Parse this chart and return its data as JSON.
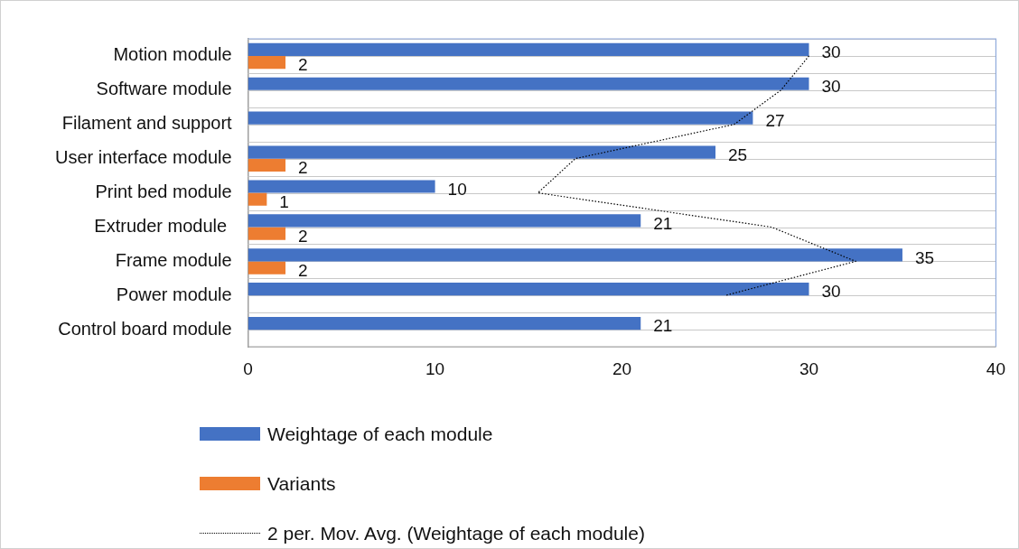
{
  "chart_data": {
    "type": "bar",
    "orientation": "horizontal",
    "categories": [
      "Motion module",
      "Software module",
      "Filament and support",
      "User interface module",
      "Print bed module",
      "Extruder module ",
      "Frame module",
      "Power module",
      "Control board module"
    ],
    "series": [
      {
        "name": "Weightage of each module",
        "color": "#4472c4",
        "values": [
          30,
          30,
          27,
          25,
          10,
          21,
          35,
          30,
          21
        ],
        "value_labels": [
          "30",
          "30",
          "27",
          "25",
          "10",
          "21",
          "35",
          "30",
          "21"
        ]
      },
      {
        "name": "Variants",
        "color": "#ed7d31",
        "values": [
          2,
          null,
          null,
          2,
          1,
          2,
          2,
          null,
          null
        ],
        "value_labels": [
          "2",
          null,
          null,
          "2",
          "1",
          "2",
          "2",
          null,
          null
        ]
      },
      {
        "name": "2 per. Mov. Avg. (Weightage of each module)",
        "type": "line",
        "color": "#000000",
        "line_style": "dotted",
        "marker": "none",
        "values": [
          30,
          28.5,
          26,
          17.5,
          15.5,
          28,
          32.5,
          25.5,
          null
        ]
      }
    ],
    "xlim": [
      0,
      40
    ],
    "xticks": [
      0,
      10,
      20,
      30,
      40
    ],
    "grid": "y",
    "legend": "bottom"
  }
}
